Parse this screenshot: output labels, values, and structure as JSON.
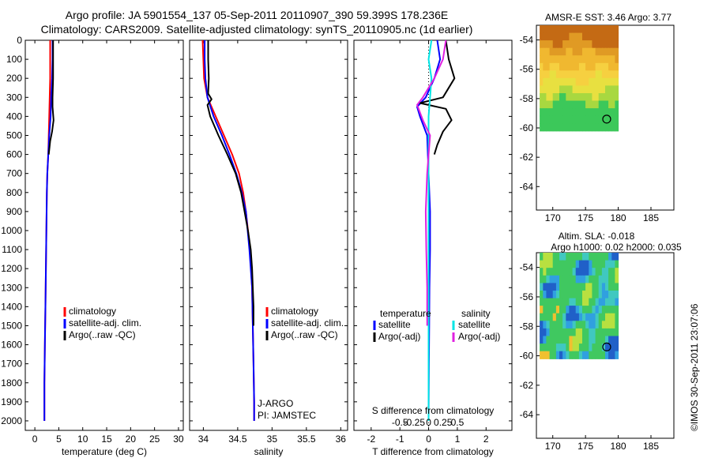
{
  "header": {
    "line1": "Argo profile: JA 5901554_137 05-Sep-2011 20110907_390 59.399S 178.236E",
    "line2": "Climatology: CARS2009. Satellite-adjusted climatology: synTS_20110905.nc (1d earlier)"
  },
  "footer": {
    "stamp": "©IMOS 30-Sep-2011 23:07:06"
  },
  "colors": {
    "climatology": "#ff0000",
    "satellite": "#0000ff",
    "argo": "#000000",
    "sal_satellite": "#00e5e5",
    "sal_argo": "#e020e0"
  },
  "maps": [
    {
      "title_lines": [
        "AMSR-E SST: 3.46 Argo: 3.77"
      ],
      "ytick_labels": [
        "-54",
        "-56",
        "-58",
        "-60",
        "-62",
        "-64"
      ],
      "xtick_labels": [
        "170",
        "175",
        "180",
        "185"
      ],
      "field": "sst",
      "marker": {
        "lon": 178.236,
        "lat": -59.399
      }
    },
    {
      "title_lines": [
        "Altim. SLA: -0.018",
        "Argo h1000: 0.02 h2000: 0.035"
      ],
      "ytick_labels": [
        "-54",
        "-56",
        "-58",
        "-60",
        "-62",
        "-64"
      ],
      "xtick_labels": [
        "170",
        "175",
        "180",
        "185"
      ],
      "field": "sla",
      "marker": {
        "lon": 178.236,
        "lat": -59.399
      }
    }
  ],
  "chart_data": [
    {
      "type": "line",
      "xlabel": "temperature (deg C)",
      "ylabel": "",
      "xlim": [
        -2,
        31
      ],
      "ylim": [
        2050,
        0
      ],
      "y_reversed": true,
      "xtick_labels": [
        "0",
        "5",
        "10",
        "15",
        "20",
        "25",
        "30"
      ],
      "ytick_labels": [
        "0",
        "100",
        "200",
        "300",
        "400",
        "500",
        "600",
        "700",
        "800",
        "900",
        "1000",
        "1100",
        "1200",
        "1300",
        "1400",
        "1500",
        "1600",
        "1700",
        "1800",
        "1900",
        "2000"
      ],
      "legend": [
        "climatology",
        "satellite-adj. clim.",
        "Argo(..raw -QC)"
      ],
      "series": [
        {
          "name": "climatology",
          "color": "#ff0000",
          "x": [
            3.2,
            3.2,
            3.2,
            3.1,
            3.0,
            2.9,
            2.8,
            2.6,
            2.5,
            2.4,
            2.3,
            2.2,
            2.1,
            2.0,
            2.0
          ],
          "y": [
            0,
            100,
            200,
            300,
            400,
            500,
            600,
            700,
            800,
            1000,
            1200,
            1400,
            1600,
            1800,
            2000
          ]
        },
        {
          "name": "satellite-adj. clim.",
          "color": "#0000ff",
          "x": [
            3.7,
            3.7,
            3.6,
            3.4,
            3.3,
            3.0,
            2.8,
            2.6,
            2.5,
            2.4,
            2.3,
            2.2,
            2.1,
            2.0,
            2.0
          ],
          "y": [
            0,
            100,
            200,
            300,
            400,
            500,
            600,
            700,
            800,
            1000,
            1200,
            1400,
            1600,
            1800,
            2000
          ]
        },
        {
          "name": "Argo(..raw -QC)",
          "color": "#000000",
          "x": [
            3.8,
            3.8,
            3.8,
            3.7,
            3.7,
            3.9,
            3.6,
            3.2,
            2.9
          ],
          "y": [
            0,
            100,
            200,
            300,
            350,
            420,
            480,
            530,
            600
          ]
        }
      ]
    },
    {
      "type": "line",
      "xlabel": "salinity",
      "ylabel": "",
      "xlim": [
        33.8,
        36.1
      ],
      "ylim": [
        2050,
        0
      ],
      "y_reversed": true,
      "xtick_labels": [
        "34",
        "34.5",
        "35",
        "35.5",
        "36"
      ],
      "legend": [
        "climatology",
        "satellite-adj. clim.",
        "Argo(..raw -QC)"
      ],
      "annotations": [
        "J-ARGO",
        "PI: JAMSTEC"
      ],
      "series": [
        {
          "name": "climatology",
          "color": "#ff0000",
          "x": [
            33.99,
            34.0,
            34.01,
            34.06,
            34.18,
            34.3,
            34.42,
            34.52,
            34.58,
            34.62,
            34.68,
            34.71,
            34.72,
            34.73,
            34.74,
            34.74
          ],
          "y": [
            0,
            100,
            200,
            300,
            400,
            500,
            600,
            700,
            800,
            900,
            1100,
            1300,
            1500,
            1700,
            1900,
            2000
          ]
        },
        {
          "name": "satellite-adj. clim.",
          "color": "#0000ff",
          "x": [
            34.02,
            34.02,
            34.03,
            34.06,
            34.15,
            34.27,
            34.38,
            34.48,
            34.56,
            34.62,
            34.67,
            34.71,
            34.72,
            34.73,
            34.74,
            34.74
          ],
          "y": [
            0,
            100,
            200,
            300,
            400,
            500,
            600,
            700,
            800,
            900,
            1100,
            1300,
            1500,
            1700,
            1900,
            2000
          ]
        },
        {
          "name": "Argo(..raw -QC)",
          "color": "#000000",
          "x": [
            34.07,
            34.07,
            34.08,
            34.07,
            34.12,
            34.06,
            34.1,
            34.22,
            34.35,
            34.47,
            34.55,
            34.6,
            34.65,
            34.69,
            34.71,
            34.72,
            34.73,
            34.73
          ],
          "y": [
            0,
            100,
            200,
            280,
            310,
            340,
            400,
            500,
            600,
            700,
            800,
            900,
            1000,
            1100,
            1200,
            1300,
            1400,
            1500
          ]
        }
      ]
    },
    {
      "type": "line",
      "xlabel": "T difference from climatology",
      "xlabel_top": "S difference from climatology",
      "ylabel": "",
      "xlim": [
        -2.6,
        2.9
      ],
      "ylim": [
        2050,
        0
      ],
      "y_reversed": true,
      "xtick_labels": [
        "-2",
        "-1",
        "0",
        "1",
        "2"
      ],
      "top_tick_labels": [
        "-0.5",
        "-0.25",
        "0",
        "0.25",
        "0.5"
      ],
      "top_tick_values": [
        -2,
        -1,
        0,
        1,
        2
      ],
      "legend_temperature": {
        "heading": "temperature",
        "items": [
          "satellite",
          "Argo(-adj)"
        ]
      },
      "legend_salinity": {
        "heading": "salinity",
        "items": [
          "satellite",
          "Argo(-adj)"
        ]
      },
      "series": [
        {
          "name": "satellite",
          "color": "#0000ff",
          "x": [
            0.3,
            0.4,
            0.2,
            -0.1,
            -0.4,
            -0.3,
            -0.05,
            0.0,
            0.05,
            0.05,
            0.03,
            0.02,
            0.01,
            0.0
          ],
          "y": [
            0,
            100,
            200,
            300,
            350,
            400,
            500,
            700,
            900,
            1100,
            1300,
            1500,
            1700,
            2000
          ]
        },
        {
          "name": "Argo(-adj)",
          "color": "#000000",
          "x": [
            0.6,
            0.7,
            0.9,
            0.5,
            -0.3,
            0.6,
            0.8,
            0.5,
            0.3,
            0.2
          ],
          "y": [
            0,
            100,
            200,
            300,
            330,
            360,
            420,
            480,
            550,
            600
          ]
        },
        {
          "name": "satellite",
          "color": "#00e5e5",
          "x": [
            0.1,
            0.0,
            0.1,
            0.05,
            0.0,
            0.0,
            0.0,
            0.0,
            0.0,
            0.0
          ],
          "y": [
            0,
            100,
            200,
            300,
            400,
            600,
            900,
            1300,
            1700,
            2000
          ]
        },
        {
          "name": "Argo(-adj)",
          "color": "#e020e0",
          "x": [
            0.6,
            0.5,
            0.2,
            -0.2,
            -0.4,
            -0.2,
            0.05,
            -0.05,
            -0.1,
            -0.08,
            -0.05,
            -0.05
          ],
          "y": [
            0,
            100,
            200,
            300,
            340,
            420,
            500,
            700,
            900,
            1100,
            1300,
            1500
          ]
        }
      ]
    }
  ]
}
